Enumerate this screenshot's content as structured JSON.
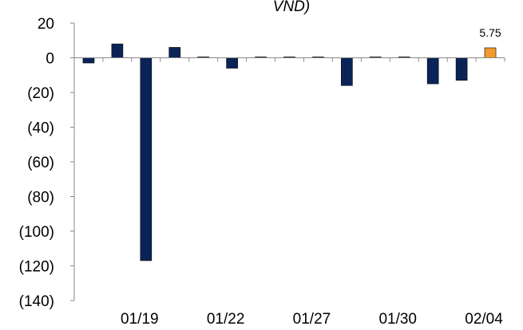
{
  "chart_data": {
    "type": "bar",
    "title_fragment": "VND)",
    "categories": [
      "",
      "",
      "01/19",
      "",
      "",
      "01/22",
      "",
      "",
      "01/27",
      "",
      "",
      "01/30",
      "",
      "",
      "02/04"
    ],
    "values": [
      -3,
      8,
      -117,
      6,
      0.5,
      -6,
      0.5,
      0.5,
      0.5,
      -16,
      0.5,
      0.5,
      -15,
      -13,
      5.75
    ],
    "data_labels": [
      "",
      "",
      "",
      "",
      "",
      "",
      "",
      "",
      "",
      "",
      "",
      "",
      "",
      "",
      "5.75"
    ],
    "ylim": [
      -140,
      20
    ],
    "yticks": [
      20,
      0,
      -20,
      -40,
      -60,
      -80,
      -100,
      -120,
      -140
    ],
    "ytick_labels": [
      "20",
      "0",
      "(20)",
      "(40)",
      "(60)",
      "(80)",
      "(100)",
      "(120)",
      "(140)"
    ],
    "colors": {
      "bar": "#0a2458",
      "highlight": "#f29a2e",
      "highlight_index": 14,
      "axis": "#888888"
    },
    "grid": false,
    "legend": "none"
  }
}
